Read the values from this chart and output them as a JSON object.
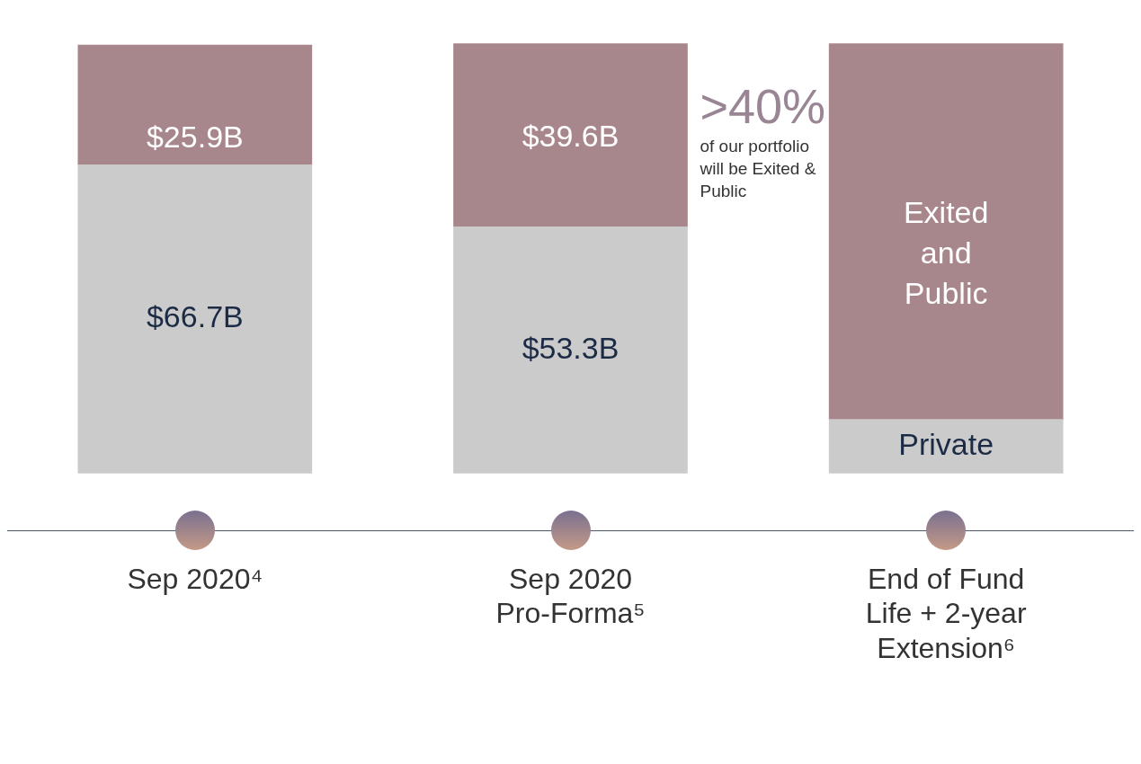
{
  "chart_data": {
    "type": "bar",
    "stacked": true,
    "categories": [
      "Sep 2020⁴",
      "Sep 2020 Pro-Forma⁵",
      "End of Fund Life + 2-year Extension⁶"
    ],
    "series": [
      {
        "name": "Private",
        "color": "#cbcbcb",
        "values": [
          66.7,
          53.3,
          11.7
        ],
        "value_labels": [
          "$66.7B",
          "$53.3B",
          null
        ]
      },
      {
        "name": "Exited and Public",
        "color": "#a8878c",
        "values": [
          25.9,
          39.6,
          81.2
        ],
        "value_labels": [
          "$25.9B",
          "$39.6B",
          null
        ]
      }
    ],
    "annotations": [
      ">40%",
      "of our portfolio will be Exited & Public"
    ],
    "grid": false,
    "legend": false
  }
}
